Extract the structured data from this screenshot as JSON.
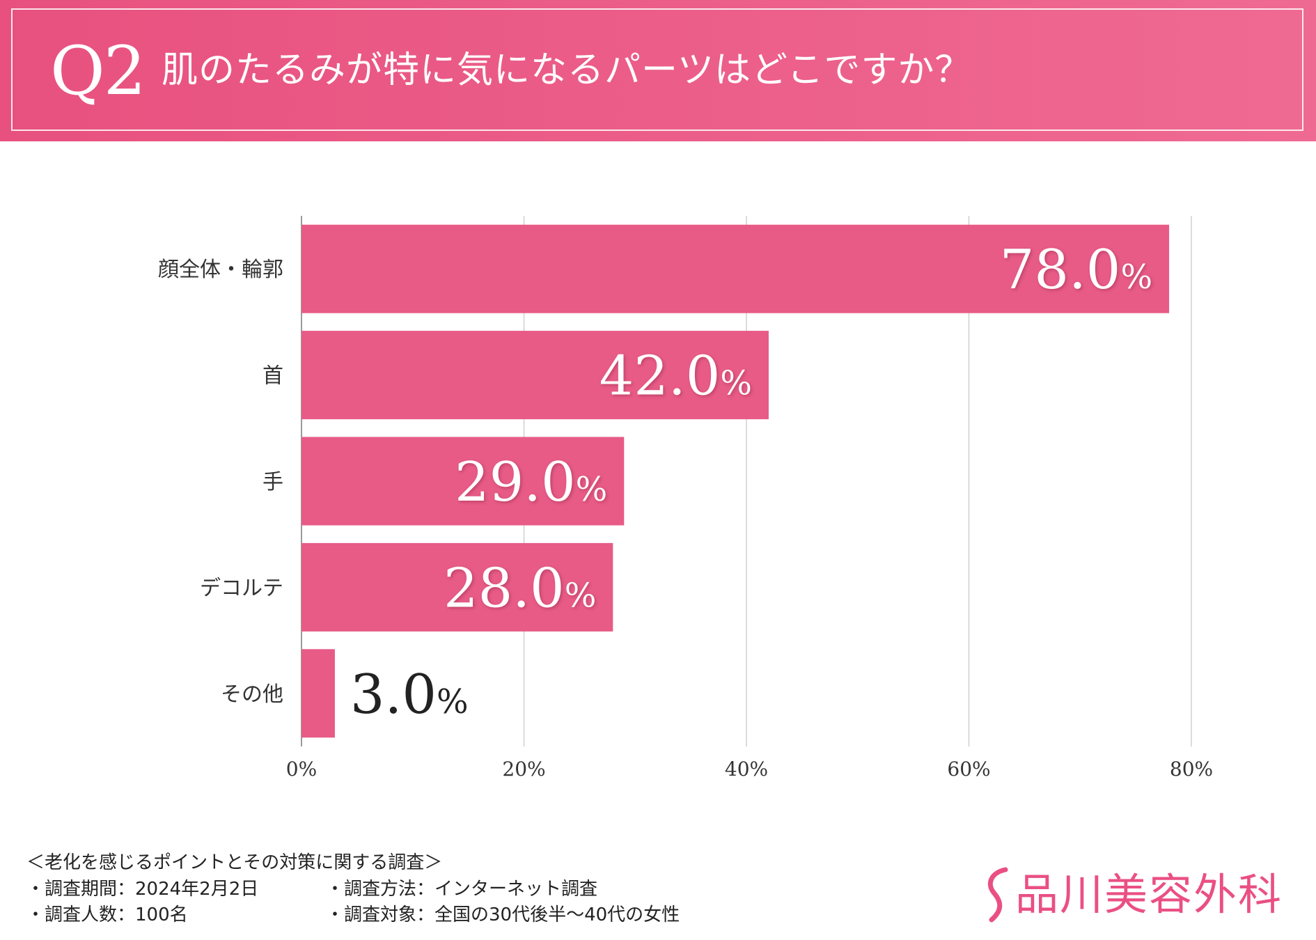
{
  "header": {
    "q_label": "Q2",
    "title": "肌のたるみが特に気になるパーツはどこですか？"
  },
  "chart_data": {
    "type": "bar",
    "orientation": "horizontal",
    "categories": [
      "顔全体・輪郭",
      "首",
      "手",
      "デコルテ",
      "その他"
    ],
    "values": [
      78.0,
      42.0,
      29.0,
      28.0,
      3.0
    ],
    "data_labels": [
      "78.0",
      "42.0",
      "29.0",
      "28.0",
      "3.0"
    ],
    "unit": "%",
    "xlim": [
      0,
      80
    ],
    "x_ticks": [
      "0%",
      "20%",
      "40%",
      "60%",
      "80%"
    ],
    "grid": true,
    "bar_color": "#e75b86",
    "title": "",
    "xlabel": "",
    "ylabel": ""
  },
  "footer": {
    "survey_title": "＜老化を感じるポイントとその対策に関する調査＞",
    "period": "・調査期間：2024年2月2日",
    "method": "・調査方法：インターネット調査",
    "count": "・調査人数：100名",
    "target": "・調査対象：全国の30代後半～40代の女性"
  },
  "logo": {
    "text": "品川美容外科",
    "icon": "s-curve-logo-icon",
    "color": "#ea4f84"
  }
}
